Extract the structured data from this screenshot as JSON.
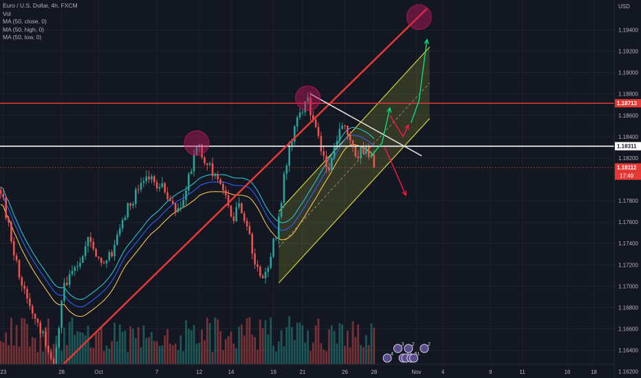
{
  "legend": {
    "symbol": "Euro / U.S. Dollar, 4h, FXCM",
    "vol": "Vol",
    "ma_close": "MA (50, close, 0)",
    "ma_high": "MA (50, high, 0)",
    "ma_low": "MA (50, low, 0)"
  },
  "colors": {
    "background": "#131722",
    "up": "#26a69a",
    "down": "#ef5350",
    "ma_close": "#2962ff",
    "ma_high": "#26c6da",
    "ma_low": "#f9c74f",
    "trendline": "#e53935",
    "channel": "#d4d43a",
    "forecast_up": "#00e676",
    "forecast_down": "#ff1744",
    "circle": "#c2185b"
  },
  "chart_data": {
    "type": "candlestick",
    "symbol": "EURUSD",
    "timeframe": "4h",
    "y_unit": "USD",
    "ylim": [
      1.1614,
      1.1968
    ],
    "y_ticks": [
      "1.19400",
      "1.19200",
      "1.19000",
      "1.18800",
      "1.18600",
      "1.18400",
      "1.18200",
      "1.17800",
      "1.17600",
      "1.17400",
      "1.17200",
      "1.17000",
      "1.16800",
      "1.16600",
      "1.16400",
      "1.16200"
    ],
    "x_ticks": [
      {
        "label": "23",
        "bar": 1
      },
      {
        "label": "28",
        "bar": 23
      },
      {
        "label": "Oct",
        "bar": 37
      },
      {
        "label": "7",
        "bar": 59
      },
      {
        "label": "12",
        "bar": 75
      },
      {
        "label": "14",
        "bar": 87
      },
      {
        "label": "19",
        "bar": 103
      },
      {
        "label": "21",
        "bar": 114
      },
      {
        "label": "26",
        "bar": 130
      },
      {
        "label": "28",
        "bar": 141
      },
      {
        "label": "Nov",
        "bar": 157
      },
      {
        "label": "4",
        "bar": 167
      },
      {
        "label": "9",
        "bar": 185
      },
      {
        "label": "11",
        "bar": 197
      },
      {
        "label": "16",
        "bar": 214
      },
      {
        "label": "18",
        "bar": 224
      }
    ],
    "anchors": [
      [
        0,
        1.179
      ],
      [
        8,
        1.17
      ],
      [
        15,
        1.166
      ],
      [
        20,
        1.163
      ],
      [
        24,
        1.17
      ],
      [
        29,
        1.172
      ],
      [
        33,
        1.1745
      ],
      [
        38,
        1.172
      ],
      [
        42,
        1.173
      ],
      [
        47,
        1.177
      ],
      [
        52,
        1.179
      ],
      [
        56,
        1.18
      ],
      [
        62,
        1.179
      ],
      [
        67,
        1.177
      ],
      [
        71,
        1.18
      ],
      [
        74,
        1.1832
      ],
      [
        78,
        1.1815
      ],
      [
        84,
        1.179
      ],
      [
        87,
        1.176
      ],
      [
        90,
        1.1775
      ],
      [
        94,
        1.1745
      ],
      [
        98,
        1.1705
      ],
      [
        101,
        1.172
      ],
      [
        104,
        1.175
      ],
      [
        107,
        1.18
      ],
      [
        110,
        1.184
      ],
      [
        113,
        1.186
      ],
      [
        116,
        1.1875
      ],
      [
        119,
        1.1845
      ],
      [
        122,
        1.182
      ],
      [
        124,
        1.1805
      ],
      [
        127,
        1.184
      ],
      [
        130,
        1.185
      ],
      [
        134,
        1.182
      ],
      [
        138,
        1.183
      ],
      [
        141,
        1.1812
      ]
    ],
    "last_bar": 141,
    "price_labels": {
      "resistance": "1.18713",
      "support": "1.18311",
      "current": "1.18112",
      "countdown": "17:49"
    },
    "levels": {
      "resistance": 1.18713,
      "support": 1.18311,
      "current": 1.18112
    },
    "trendline": {
      "from": [
        20,
        1.1618
      ],
      "to": [
        161,
        1.196
      ]
    },
    "channel": {
      "lower": {
        "from": [
          105,
          1.1703
        ],
        "to": [
          162,
          1.1857
        ]
      },
      "upper": {
        "from": [
          105,
          1.177
        ],
        "to": [
          162,
          1.1924
        ]
      },
      "mid": {
        "from": [
          105,
          1.17365
        ],
        "to": [
          162,
          1.18905
        ]
      }
    },
    "white_line": {
      "from": [
        117,
        1.188
      ],
      "to": [
        159,
        1.1822
      ]
    },
    "circles": [
      [
        74,
        1.1834
      ],
      [
        116,
        1.1876
      ],
      [
        158,
        1.1952
      ]
    ],
    "forecast_up": [
      [
        [
          140,
          1.1822
        ],
        [
          144,
          1.1834
        ],
        [
          147,
          1.1867
        ]
      ],
      [
        [
          155,
          1.1853
        ],
        [
          158,
          1.1874
        ],
        [
          161,
          1.1931
        ]
      ]
    ],
    "forecast_down": [
      [
        [
          147,
          1.186
        ],
        [
          152,
          1.184
        ],
        [
          154,
          1.1851
        ]
      ],
      [
        [
          145,
          1.183
        ],
        [
          149,
          1.1808
        ],
        [
          153,
          1.1785
        ]
      ]
    ],
    "event_icons": [
      {
        "bar": 146,
        "badge": "4"
      },
      {
        "bar": 150,
        "badge": "3"
      },
      {
        "bar": 152,
        "badge": "4"
      },
      {
        "bar": 153,
        "badge": "1"
      },
      {
        "bar": 154,
        "badge": "2"
      },
      {
        "bar": 155,
        "badge": "5"
      },
      {
        "bar": 156,
        "badge": "1"
      },
      {
        "bar": 160,
        "badge": "2"
      }
    ]
  }
}
